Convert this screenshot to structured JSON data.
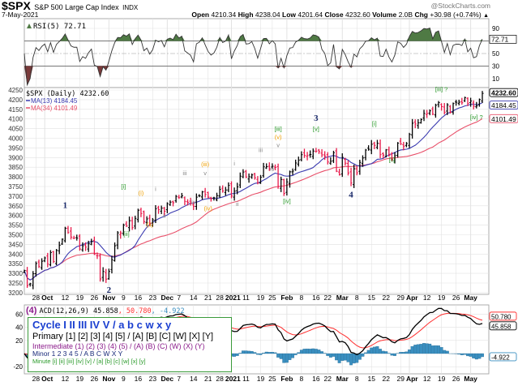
{
  "header": {
    "symbol": "$SPX",
    "name": "S&P 500 Large Cap Index",
    "exchange": "INDX",
    "watermark": "@StockCharts.com",
    "date": "7-May-2021",
    "open_label": "Open",
    "open": "4210.34",
    "high_label": "High",
    "high": "4238.04",
    "low_label": "Low",
    "low": "4201.64",
    "close_label": "Close",
    "close": "4232.60",
    "volume_label": "Volume",
    "volume": "2.0B",
    "chg_label": "Chg",
    "chg": "+30.98 (+0.74%)"
  },
  "colors": {
    "up_bar": "#000000",
    "down_bar": "#e8194a",
    "ma13": "#3a3ab0",
    "ma34": "#e8506a",
    "rsi_over": "#4f7a44",
    "rsi_under": "#7a3a3a",
    "macd": "#000000",
    "signal": "#ff3030",
    "histogram": "#3a8fc0",
    "grid": "#e2e2e2",
    "legend_border": "#3a9a3a"
  },
  "chart_data": {
    "type": "ohlc",
    "panels": {
      "rsi": {
        "label": "RSI(5) 72.71",
        "value_box": "72.71",
        "ticks": [
          "90",
          "70",
          "50",
          "30",
          "10"
        ],
        "tick_values": [
          90,
          70,
          50,
          30,
          10
        ],
        "overbought": 70,
        "oversold": 30,
        "mid": 50
      },
      "price": {
        "legend": [
          {
            "label": "$SPX (Daily) 4232.60"
          },
          {
            "label": "MA(13) 4184.45"
          },
          {
            "label": "MA(34) 4101.49"
          }
        ],
        "value_boxes": [
          "4232.60",
          "4184.45",
          "4101.49"
        ],
        "ylim": [
          3200,
          4250
        ],
        "ticks": [
          4250,
          4200,
          4150,
          4100,
          4050,
          4000,
          3950,
          3900,
          3850,
          3800,
          3750,
          3700,
          3650,
          3600,
          3550,
          3500,
          3450,
          3400,
          3350,
          3300,
          3250,
          3200
        ]
      },
      "macd": {
        "label_prefix": "ACD(12,26,9) 45.858",
        "label_signal": ", 50.780",
        "label_hist": ", -4.922",
        "value_boxes": [
          "50.780",
          "45.858",
          "-4.922"
        ],
        "ticks": [
          60,
          40,
          20,
          -20
        ]
      }
    },
    "x_ticks": [
      {
        "label": "28",
        "date": "2020-09-28"
      },
      {
        "label": "Oct",
        "date": "2020-10-01",
        "month": true
      },
      {
        "label": "12",
        "date": "2020-10-12"
      },
      {
        "label": "19",
        "date": "2020-10-19"
      },
      {
        "label": "26",
        "date": "2020-10-26"
      },
      {
        "label": "Nov",
        "date": "2020-11-02",
        "month": true
      },
      {
        "label": "9",
        "date": "2020-11-09"
      },
      {
        "label": "16",
        "date": "2020-11-16"
      },
      {
        "label": "23",
        "date": "2020-11-23"
      },
      {
        "label": "Dec",
        "date": "2020-12-01",
        "month": true
      },
      {
        "label": "7",
        "date": "2020-12-07"
      },
      {
        "label": "14",
        "date": "2020-12-14"
      },
      {
        "label": "21",
        "date": "2020-12-21"
      },
      {
        "label": "28",
        "date": "2020-12-28"
      },
      {
        "label": "2021",
        "date": "2021-01-04",
        "month": true
      },
      {
        "label": "11",
        "date": "2021-01-11"
      },
      {
        "label": "19",
        "date": "2021-01-19"
      },
      {
        "label": "25",
        "date": "2021-01-25"
      },
      {
        "label": "Feb",
        "date": "2021-02-01",
        "month": true
      },
      {
        "label": "8",
        "date": "2021-02-08"
      },
      {
        "label": "16",
        "date": "2021-02-16"
      },
      {
        "label": "22",
        "date": "2021-02-22"
      },
      {
        "label": "Mar",
        "date": "2021-03-01",
        "month": true
      },
      {
        "label": "8",
        "date": "2021-03-08"
      },
      {
        "label": "15",
        "date": "2021-03-15"
      },
      {
        "label": "22",
        "date": "2021-03-22"
      },
      {
        "label": "29",
        "date": "2021-03-29"
      },
      {
        "label": "Apr",
        "date": "2021-04-01",
        "month": true
      },
      {
        "label": "12",
        "date": "2021-04-12"
      },
      {
        "label": "19",
        "date": "2021-04-19"
      },
      {
        "label": "26",
        "date": "2021-04-26"
      },
      {
        "label": "May",
        "date": "2021-05-03",
        "month": true
      }
    ],
    "bars": [
      [
        "2020-09-22",
        3315
      ],
      [
        "2020-09-23",
        3237
      ],
      [
        "2020-09-24",
        3246
      ],
      [
        "2020-09-25",
        3298
      ],
      [
        "2020-09-28",
        3351
      ],
      [
        "2020-09-29",
        3335
      ],
      [
        "2020-09-30",
        3363
      ],
      [
        "2020-10-01",
        3380
      ],
      [
        "2020-10-02",
        3348
      ],
      [
        "2020-10-05",
        3408
      ],
      [
        "2020-10-06",
        3361
      ],
      [
        "2020-10-07",
        3419
      ],
      [
        "2020-10-08",
        3446
      ],
      [
        "2020-10-09",
        3477
      ],
      [
        "2020-10-12",
        3534
      ],
      [
        "2020-10-13",
        3511
      ],
      [
        "2020-10-14",
        3488
      ],
      [
        "2020-10-15",
        3483
      ],
      [
        "2020-10-16",
        3483
      ],
      [
        "2020-10-19",
        3426
      ],
      [
        "2020-10-20",
        3443
      ],
      [
        "2020-10-21",
        3436
      ],
      [
        "2020-10-22",
        3453
      ],
      [
        "2020-10-23",
        3465
      ],
      [
        "2020-10-26",
        3400
      ],
      [
        "2020-10-27",
        3391
      ],
      [
        "2020-10-28",
        3271
      ],
      [
        "2020-10-29",
        3310
      ],
      [
        "2020-10-30",
        3270
      ],
      [
        "2020-11-02",
        3310
      ],
      [
        "2020-11-03",
        3370
      ],
      [
        "2020-11-04",
        3443
      ],
      [
        "2020-11-05",
        3510
      ],
      [
        "2020-11-06",
        3509
      ],
      [
        "2020-11-09",
        3550
      ],
      [
        "2020-11-10",
        3545
      ],
      [
        "2020-11-11",
        3573
      ],
      [
        "2020-11-12",
        3537
      ],
      [
        "2020-11-13",
        3585
      ],
      [
        "2020-11-16",
        3627
      ],
      [
        "2020-11-17",
        3610
      ],
      [
        "2020-11-18",
        3568
      ],
      [
        "2020-11-19",
        3582
      ],
      [
        "2020-11-20",
        3558
      ],
      [
        "2020-11-23",
        3577
      ],
      [
        "2020-11-24",
        3635
      ],
      [
        "2020-11-25",
        3630
      ],
      [
        "2020-11-27",
        3638
      ],
      [
        "2020-11-30",
        3622
      ],
      [
        "2020-12-01",
        3662
      ],
      [
        "2020-12-02",
        3669
      ],
      [
        "2020-12-03",
        3666
      ],
      [
        "2020-12-04",
        3699
      ],
      [
        "2020-12-07",
        3692
      ],
      [
        "2020-12-08",
        3702
      ],
      [
        "2020-12-09",
        3673
      ],
      [
        "2020-12-10",
        3668
      ],
      [
        "2020-12-11",
        3663
      ],
      [
        "2020-12-14",
        3647
      ],
      [
        "2020-12-15",
        3695
      ],
      [
        "2020-12-16",
        3702
      ],
      [
        "2020-12-17",
        3722
      ],
      [
        "2020-12-18",
        3709
      ],
      [
        "2020-12-21",
        3695
      ],
      [
        "2020-12-22",
        3687
      ],
      [
        "2020-12-23",
        3691
      ],
      [
        "2020-12-24",
        3703
      ],
      [
        "2020-12-28",
        3735
      ],
      [
        "2020-12-29",
        3727
      ],
      [
        "2020-12-30",
        3732
      ],
      [
        "2020-12-31",
        3756
      ],
      [
        "2021-01-04",
        3701
      ],
      [
        "2021-01-05",
        3726
      ],
      [
        "2021-01-06",
        3748
      ],
      [
        "2021-01-07",
        3804
      ],
      [
        "2021-01-08",
        3825
      ],
      [
        "2021-01-11",
        3799
      ],
      [
        "2021-01-12",
        3801
      ],
      [
        "2021-01-13",
        3810
      ],
      [
        "2021-01-14",
        3795
      ],
      [
        "2021-01-15",
        3768
      ],
      [
        "2021-01-19",
        3798
      ],
      [
        "2021-01-20",
        3852
      ],
      [
        "2021-01-21",
        3853
      ],
      [
        "2021-01-22",
        3841
      ],
      [
        "2021-01-25",
        3855
      ],
      [
        "2021-01-26",
        3849
      ],
      [
        "2021-01-27",
        3751
      ],
      [
        "2021-01-28",
        3787
      ],
      [
        "2021-01-29",
        3714
      ],
      [
        "2021-02-01",
        3774
      ],
      [
        "2021-02-02",
        3826
      ],
      [
        "2021-02-03",
        3830
      ],
      [
        "2021-02-04",
        3872
      ],
      [
        "2021-02-05",
        3887
      ],
      [
        "2021-02-08",
        3915
      ],
      [
        "2021-02-09",
        3911
      ],
      [
        "2021-02-10",
        3910
      ],
      [
        "2021-02-11",
        3916
      ],
      [
        "2021-02-12",
        3934
      ],
      [
        "2021-02-16",
        3933
      ],
      [
        "2021-02-17",
        3931
      ],
      [
        "2021-02-18",
        3914
      ],
      [
        "2021-02-19",
        3907
      ],
      [
        "2021-02-22",
        3877
      ],
      [
        "2021-02-23",
        3881
      ],
      [
        "2021-02-24",
        3925
      ],
      [
        "2021-02-25",
        3829
      ],
      [
        "2021-02-26",
        3811
      ],
      [
        "2021-03-01",
        3901
      ],
      [
        "2021-03-02",
        3871
      ],
      [
        "2021-03-03",
        3820
      ],
      [
        "2021-03-04",
        3768
      ],
      [
        "2021-03-05",
        3842
      ],
      [
        "2021-03-08",
        3821
      ],
      [
        "2021-03-09",
        3875
      ],
      [
        "2021-03-10",
        3898
      ],
      [
        "2021-03-11",
        3939
      ],
      [
        "2021-03-12",
        3943
      ],
      [
        "2021-03-15",
        3969
      ],
      [
        "2021-03-16",
        3963
      ],
      [
        "2021-03-17",
        3974
      ],
      [
        "2021-03-18",
        3915
      ],
      [
        "2021-03-19",
        3913
      ],
      [
        "2021-03-22",
        3940
      ],
      [
        "2021-03-23",
        3911
      ],
      [
        "2021-03-24",
        3889
      ],
      [
        "2021-03-25",
        3910
      ],
      [
        "2021-03-26",
        3975
      ],
      [
        "2021-03-29",
        3971
      ],
      [
        "2021-03-30",
        3959
      ],
      [
        "2021-03-31",
        3973
      ],
      [
        "2021-04-01",
        4020
      ],
      [
        "2021-04-05",
        4078
      ],
      [
        "2021-04-06",
        4074
      ],
      [
        "2021-04-07",
        4080
      ],
      [
        "2021-04-08",
        4097
      ],
      [
        "2021-04-09",
        4129
      ],
      [
        "2021-04-12",
        4128
      ],
      [
        "2021-04-13",
        4142
      ],
      [
        "2021-04-14",
        4125
      ],
      [
        "2021-04-15",
        4171
      ],
      [
        "2021-04-16",
        4185
      ],
      [
        "2021-04-19",
        4164
      ],
      [
        "2021-04-20",
        4135
      ],
      [
        "2021-04-21",
        4173
      ],
      [
        "2021-04-22",
        4135
      ],
      [
        "2021-04-23",
        4180
      ],
      [
        "2021-04-26",
        4187
      ],
      [
        "2021-04-27",
        4187
      ],
      [
        "2021-04-28",
        4184
      ],
      [
        "2021-04-29",
        4211
      ],
      [
        "2021-04-30",
        4181
      ],
      [
        "2021-05-03",
        4193
      ],
      [
        "2021-05-04",
        4165
      ],
      [
        "2021-05-05",
        4168
      ],
      [
        "2021-05-06",
        4201
      ],
      [
        "2021-05-07",
        4232.6
      ]
    ],
    "wave_labels": [
      {
        "text": "1",
        "date": "2020-10-12",
        "price": 3638,
        "degree": "minor"
      },
      {
        "text": "2",
        "date": "2020-11-02",
        "price": 3185,
        "degree": "minor"
      },
      {
        "text": "[i]",
        "date": "2020-11-09",
        "price": 3740,
        "degree": "minute"
      },
      {
        "text": "[ii]",
        "date": "2020-11-10",
        "price": 3494,
        "degree": "minute"
      },
      {
        "text": "(i)",
        "date": "2020-11-17",
        "price": 3705,
        "degree": "minuette"
      },
      {
        "text": "(ii)",
        "date": "2020-11-20",
        "price": 3541,
        "degree": "minuette"
      },
      {
        "text": "i",
        "date": "2020-11-24",
        "price": 3727,
        "degree": "sub"
      },
      {
        "text": "ii",
        "date": "2020-11-30",
        "price": 3589,
        "degree": "sub"
      },
      {
        "text": "iii",
        "date": "2020-12-09",
        "price": 3809,
        "degree": "sub"
      },
      {
        "text": "iv",
        "date": "2020-12-14",
        "price": 3659,
        "degree": "sub"
      },
      {
        "text": "(iii)",
        "date": "2020-12-18",
        "price": 3854,
        "degree": "minuette"
      },
      {
        "text": "v",
        "date": "2020-12-18",
        "price": 3809,
        "degree": "sub"
      },
      {
        "text": "(iv)",
        "date": "2020-12-21",
        "price": 3627,
        "degree": "minuette"
      },
      {
        "text": "i",
        "date": "2021-01-05",
        "price": 3859,
        "degree": "sub"
      },
      {
        "text": "ii",
        "date": "2021-01-06",
        "price": 3649,
        "degree": "sub"
      },
      {
        "text": "iii",
        "date": "2021-01-19",
        "price": 3928,
        "degree": "sub"
      },
      {
        "text": "iv",
        "date": "2021-01-25",
        "price": 3830,
        "degree": "sub"
      },
      {
        "text": "[iii]",
        "date": "2021-01-27",
        "price": 4037,
        "degree": "minute"
      },
      {
        "text": "(v)",
        "date": "2021-01-27",
        "price": 3996,
        "degree": "minuette"
      },
      {
        "text": "v",
        "date": "2021-01-27",
        "price": 3954,
        "degree": "sub"
      },
      {
        "text": "[iv]",
        "date": "2021-02-01",
        "price": 3663,
        "degree": "minute"
      },
      {
        "text": "3",
        "date": "2021-02-16",
        "price": 4090,
        "degree": "minor"
      },
      {
        "text": "[v]",
        "date": "2021-02-16",
        "price": 4037,
        "degree": "minute"
      },
      {
        "text": "4",
        "date": "2021-03-04",
        "price": 3693,
        "degree": "minor"
      },
      {
        "text": "[i]",
        "date": "2021-03-16",
        "price": 4065,
        "degree": "minute"
      },
      {
        "text": "[ii]",
        "date": "2021-03-24",
        "price": 3879,
        "degree": "minute"
      },
      {
        "text": "[iii] ?",
        "date": "2021-04-19",
        "price": 4244,
        "degree": "minute"
      },
      {
        "text": "[iv] ?",
        "date": "2021-05-05",
        "price": 4099,
        "degree": "minute"
      }
    ],
    "wave_colors": {
      "minor": "#1a2a6a",
      "minute": "#2a9a2a",
      "minuette": "#f0a000",
      "sub": "#888888",
      "intermediate": "#8a1a8a"
    },
    "macd_wave_label": "(4)"
  },
  "legend": {
    "cycle": "Cycle I II III IV V / a b c w x y",
    "primary": "Primary [1] [2] [3] [4] [5] / [A] [B] [C] [W] [X] [Y]",
    "intermediate": "Intermediate (1) (2) (3) (4) (5) / (A) (B) (C) (W) (X) (Y)",
    "minor": "Minor 1 2 3 4 5 / A B C W X Y",
    "minute": "Minute [i] [ii] [iii] [iv] [v] / [a] [b] [c] [w] [x] [y]"
  }
}
